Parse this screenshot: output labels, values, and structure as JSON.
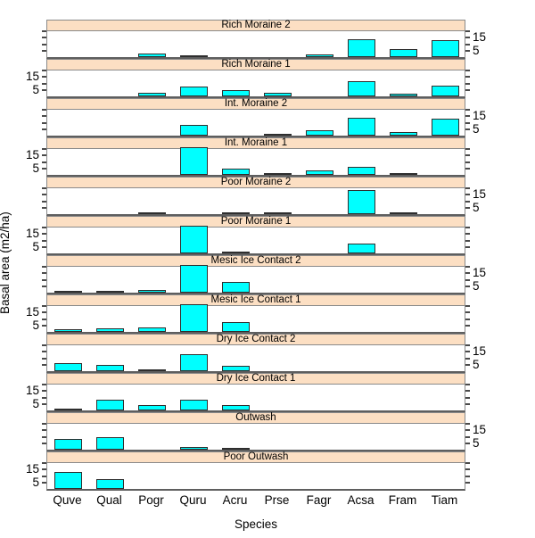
{
  "figure": {
    "xlabel": "Species",
    "ylabel": "Basal area (m2/ha)"
  },
  "chart_data": {
    "type": "bar",
    "title": "",
    "xlabel": "Species",
    "ylabel": "Basal area (m2/ha)",
    "categories": [
      "Quve",
      "Qual",
      "Pogr",
      "Quru",
      "Acru",
      "Prse",
      "Fagr",
      "Acsa",
      "Fram",
      "Tiam"
    ],
    "ylim": [
      0,
      21.5
    ],
    "yticks": [
      5,
      10,
      15,
      20
    ],
    "ytick_labeled": [
      5,
      15
    ],
    "legend": "none",
    "grid": "off",
    "bar_fill_color": "#00FFFF",
    "bar_border_color": "#2E2E2E",
    "strip_fill_color": "#FCDFC3",
    "panels": [
      {
        "label": "Rich Moraine 2",
        "axis_label_side": "right",
        "values": [
          0,
          0,
          2.7,
          1,
          0,
          0,
          2,
          14,
          6,
          13
        ]
      },
      {
        "label": "Rich Moraine 1",
        "axis_label_side": "left",
        "values": [
          0,
          0,
          3,
          7.5,
          5,
          2.5,
          0,
          11.5,
          2,
          8.5
        ]
      },
      {
        "label": "Int. Moraine 2",
        "axis_label_side": "right",
        "values": [
          0,
          0,
          0,
          8.5,
          0,
          1.3,
          4,
          14,
          2.5,
          13
        ]
      },
      {
        "label": "Int. Moraine 1",
        "axis_label_side": "left",
        "values": [
          0,
          0,
          0,
          22,
          5,
          1.5,
          3.7,
          6,
          1,
          0
        ]
      },
      {
        "label": "Poor Moraine 2",
        "axis_label_side": "right",
        "values": [
          0,
          0,
          1,
          0,
          1.2,
          0.5,
          0,
          19,
          1,
          0
        ]
      },
      {
        "label": "Poor Moraine 1",
        "axis_label_side": "left",
        "values": [
          0,
          0,
          0,
          22,
          0.5,
          0,
          0,
          7.5,
          0,
          0
        ]
      },
      {
        "label": "Mesic Ice Contact 2",
        "axis_label_side": "right",
        "values": [
          0.7,
          1.5,
          1.8,
          22,
          8,
          0,
          0,
          0,
          0,
          0
        ]
      },
      {
        "label": "Mesic Ice Contact 1",
        "axis_label_side": "left",
        "values": [
          2.4,
          2.6,
          3.3,
          22,
          7.3,
          0,
          0,
          0,
          0,
          0
        ]
      },
      {
        "label": "Dry Ice Contact 2",
        "axis_label_side": "right",
        "values": [
          6.5,
          5,
          0.8,
          13.5,
          4.5,
          0,
          0,
          0,
          0,
          0
        ]
      },
      {
        "label": "Dry Ice Contact 1",
        "axis_label_side": "left",
        "values": [
          0.7,
          8.5,
          4,
          8.5,
          4.5,
          0,
          0,
          0,
          0,
          0
        ]
      },
      {
        "label": "Outwash",
        "axis_label_side": "right",
        "values": [
          8.5,
          10,
          0,
          2,
          0.4,
          0,
          0,
          0,
          0,
          0
        ]
      },
      {
        "label": "Poor Outwash",
        "axis_label_side": "left",
        "values": [
          13.5,
          7.5,
          0,
          0,
          0,
          0,
          0,
          0,
          0,
          0
        ]
      }
    ]
  }
}
